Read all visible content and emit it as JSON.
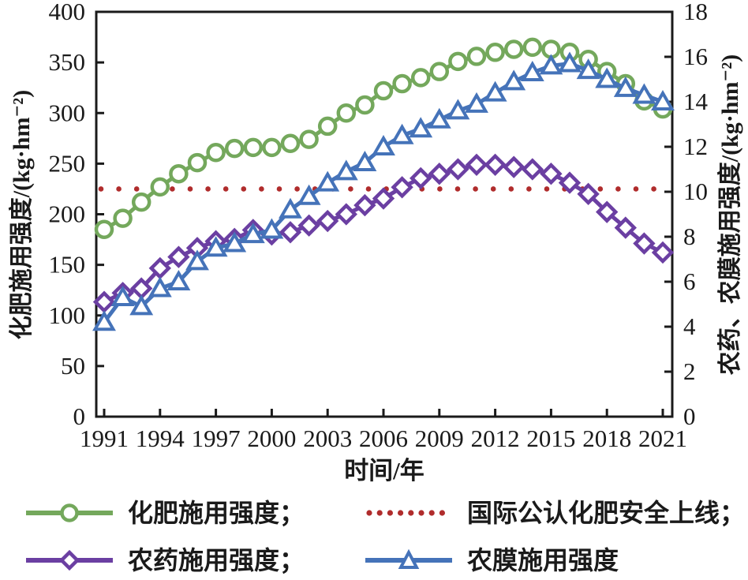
{
  "page": {
    "background": "#ffffff",
    "axis_color": "#1a1a1a"
  },
  "chart_data": {
    "type": "line",
    "title": "",
    "xlabel": "时间/年",
    "x": [
      1991,
      1992,
      1993,
      1994,
      1995,
      1996,
      1997,
      1998,
      1999,
      2000,
      2001,
      2002,
      2003,
      2004,
      2005,
      2006,
      2007,
      2008,
      2009,
      2010,
      2011,
      2012,
      2013,
      2014,
      2015,
      2016,
      2017,
      2018,
      2019,
      2020,
      2021
    ],
    "x_ticks": [
      1991,
      1994,
      1997,
      2000,
      2003,
      2006,
      2009,
      2012,
      2015,
      2018,
      2021
    ],
    "left_axis": {
      "label": "化肥施用强度/(kg·hm⁻²)",
      "range": [
        0,
        400
      ],
      "ticks": [
        0,
        50,
        100,
        150,
        200,
        250,
        300,
        350,
        400
      ]
    },
    "right_axis": {
      "label": "农药、农膜施用强度/(kg·hm⁻²)",
      "range": [
        0,
        18
      ],
      "ticks": [
        0,
        2,
        4,
        6,
        8,
        10,
        12,
        14,
        16,
        18
      ]
    },
    "grid": false,
    "legend_position": "bottom",
    "series": [
      {
        "id": "fertilizer",
        "name": "化肥施用强度",
        "axis": "left",
        "marker": "circle",
        "color": "#74a85c",
        "values": [
          185,
          196,
          212,
          227,
          240,
          251,
          261,
          265,
          266,
          266,
          270,
          274,
          287,
          300,
          308,
          322,
          329,
          335,
          341,
          351,
          356,
          360,
          363,
          365,
          363,
          360,
          353,
          341,
          329,
          312,
          304
        ]
      },
      {
        "id": "safety",
        "name": "国际公认化肥安全上线",
        "axis": "left",
        "style": "dotted",
        "color": "#b02c2c",
        "value": 225
      },
      {
        "id": "pesticide",
        "name": "农药施用强度",
        "axis": "right",
        "marker": "diamond",
        "color": "#6b3fa2",
        "values": [
          5.1,
          5.5,
          5.7,
          6.6,
          7.1,
          7.5,
          7.8,
          7.9,
          8.3,
          8.1,
          8.2,
          8.5,
          8.7,
          9.0,
          9.4,
          9.7,
          10.2,
          10.6,
          10.8,
          11.0,
          11.2,
          11.2,
          11.1,
          11.0,
          10.8,
          10.4,
          9.9,
          9.1,
          8.4,
          7.7,
          7.3
        ]
      },
      {
        "id": "film",
        "name": "农膜施用强度",
        "axis": "right",
        "marker": "triangle",
        "color": "#4573b9",
        "values": [
          4.2,
          5.3,
          4.9,
          5.7,
          6.0,
          6.9,
          7.5,
          7.7,
          8.1,
          8.3,
          9.2,
          9.8,
          10.4,
          10.9,
          11.3,
          12.0,
          12.5,
          12.8,
          13.2,
          13.6,
          13.9,
          14.4,
          14.9,
          15.3,
          15.6,
          15.7,
          15.4,
          15.0,
          14.6,
          14.3,
          14.0
        ]
      }
    ]
  },
  "legend": {
    "items": [
      {
        "id": "fertilizer",
        "label": "化肥施用强度；",
        "marker": "circle",
        "color": "#74a85c"
      },
      {
        "id": "safety",
        "label": "国际公认化肥安全上线；",
        "marker": "dotted",
        "color": "#b02c2c"
      },
      {
        "id": "pesticide",
        "label": "农药施用强度；",
        "marker": "diamond",
        "color": "#6b3fa2"
      },
      {
        "id": "film",
        "label": "农膜施用强度",
        "marker": "triangle",
        "color": "#4573b9"
      }
    ]
  }
}
